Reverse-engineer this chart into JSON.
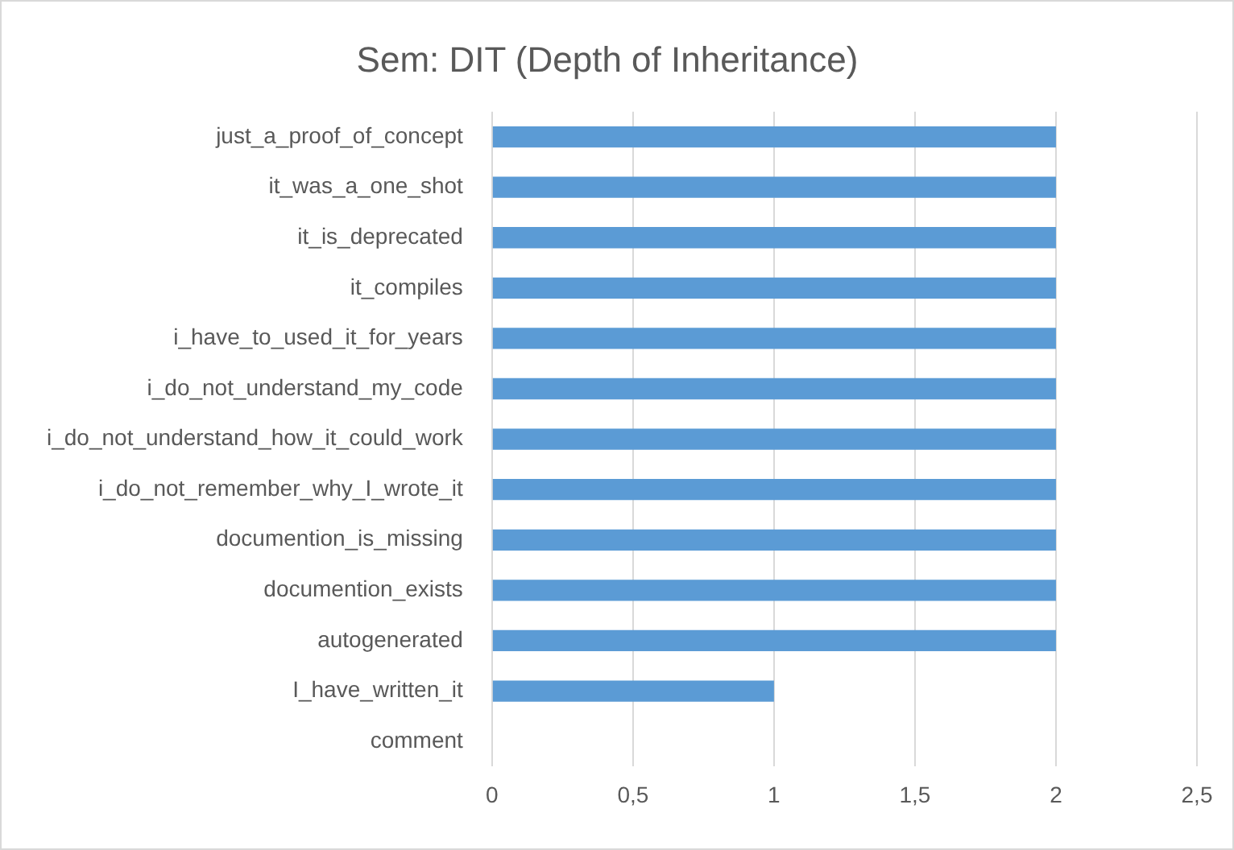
{
  "chart_data": {
    "type": "bar",
    "orientation": "horizontal",
    "title": "Sem: DIT (Depth of Inheritance)",
    "categories": [
      "just_a_proof_of_concept",
      "it_was_a_one_shot",
      "it_is_deprecated",
      "it_compiles",
      "i_have_to_used_it_for_years",
      "i_do_not_understand_my_code",
      "i_do_not_understand_how_it_could_work",
      "i_do_not_remember_why_I_wrote_it",
      "documention_is_missing",
      "documention_exists",
      "autogenerated",
      "I_have_written_it",
      "comment"
    ],
    "values": [
      2,
      2,
      2,
      2,
      2,
      2,
      2,
      2,
      2,
      2,
      2,
      1,
      0
    ],
    "color": "#5b9bd5",
    "xlim": [
      0,
      2.5
    ],
    "xticks": [
      0,
      {
        "value": 0.5,
        "label": "0,5"
      },
      1,
      {
        "value": 1.5,
        "label": "1,5"
      },
      2,
      {
        "value": 2.5,
        "label": "2,5"
      }
    ],
    "grid": "x",
    "legend": false
  }
}
